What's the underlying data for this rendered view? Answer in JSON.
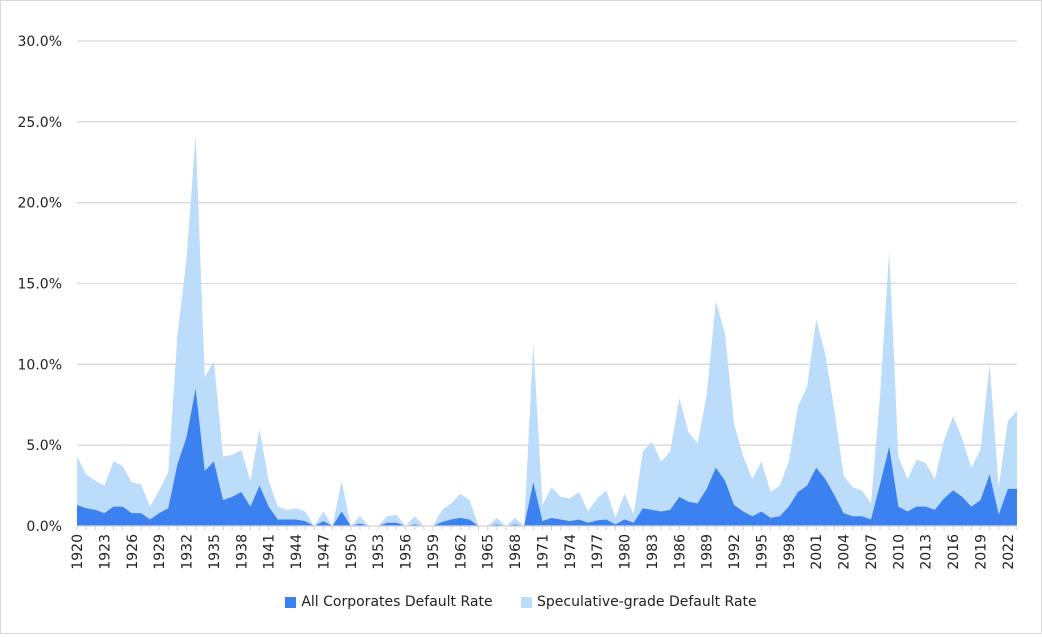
{
  "chart_data": {
    "type": "area",
    "title": "",
    "xlabel": "",
    "ylabel": "",
    "ylim": [
      0,
      30
    ],
    "yticks": [
      "0.0%",
      "5.0%",
      "10.0%",
      "15.0%",
      "20.0%",
      "25.0%",
      "30.0%"
    ],
    "grid": true,
    "legend_position": "bottom",
    "x_start": 1920,
    "x_end": 2023,
    "x_label_step": 3,
    "series": [
      {
        "name": "Speculative-grade Default Rate",
        "color": "#bcdcfc",
        "values": [
          4.3,
          3.2,
          2.8,
          2.5,
          4.0,
          3.7,
          2.7,
          2.6,
          1.2,
          2.2,
          3.3,
          11.8,
          16.5,
          24.2,
          9.2,
          10.2,
          4.3,
          4.4,
          4.7,
          2.8,
          6.0,
          2.8,
          1.2,
          1.0,
          1.1,
          0.9,
          0,
          0.9,
          0,
          2.8,
          0,
          0.6,
          0,
          0,
          0.6,
          0.7,
          0,
          0.6,
          0,
          0,
          1.0,
          1.4,
          2.0,
          1.6,
          0,
          0,
          0.5,
          0,
          0.5,
          0,
          11.3,
          1.3,
          2.4,
          1.8,
          1.7,
          2.1,
          0.9,
          1.7,
          2.2,
          0.5,
          2.0,
          0.7,
          4.6,
          5.2,
          4.0,
          4.6,
          7.9,
          5.8,
          5.1,
          8.1,
          13.9,
          11.9,
          6.3,
          4.3,
          2.9,
          4.0,
          2.1,
          2.5,
          4.0,
          7.4,
          8.6,
          12.8,
          10.6,
          7.1,
          3.1,
          2.4,
          2.2,
          1.4,
          8.1,
          17.0,
          4.3,
          2.9,
          4.1,
          3.9,
          2.9,
          5.3,
          6.8,
          5.4,
          3.6,
          4.7,
          10.0,
          2.4,
          6.5,
          7.1
        ]
      },
      {
        "name": "All Corporates Default Rate",
        "color": "#3b82f0",
        "values": [
          1.3,
          1.1,
          1.0,
          0.8,
          1.2,
          1.2,
          0.8,
          0.8,
          0.4,
          0.8,
          1.1,
          3.8,
          5.5,
          8.5,
          3.4,
          4.0,
          1.6,
          1.8,
          2.1,
          1.2,
          2.5,
          1.2,
          0.4,
          0.4,
          0.4,
          0.3,
          0,
          0.3,
          0,
          0.9,
          0,
          0.15,
          0,
          0,
          0.2,
          0.2,
          0,
          0.1,
          0,
          0,
          0.25,
          0.4,
          0.5,
          0.4,
          0,
          0,
          0.1,
          0,
          0.1,
          0,
          2.7,
          0.3,
          0.5,
          0.4,
          0.3,
          0.4,
          0.2,
          0.35,
          0.4,
          0.1,
          0.4,
          0.2,
          1.1,
          1.0,
          0.9,
          1.0,
          1.8,
          1.5,
          1.4,
          2.3,
          3.6,
          2.8,
          1.3,
          0.9,
          0.6,
          0.9,
          0.5,
          0.6,
          1.2,
          2.1,
          2.5,
          3.6,
          2.9,
          1.9,
          0.8,
          0.6,
          0.6,
          0.4,
          2.6,
          4.9,
          1.2,
          0.9,
          1.2,
          1.2,
          1.0,
          1.7,
          2.2,
          1.8,
          1.2,
          1.6,
          3.2,
          0.7,
          2.3,
          2.3
        ]
      }
    ],
    "legend": [
      "All Corporates Default Rate",
      "Speculative-grade Default Rate"
    ]
  }
}
